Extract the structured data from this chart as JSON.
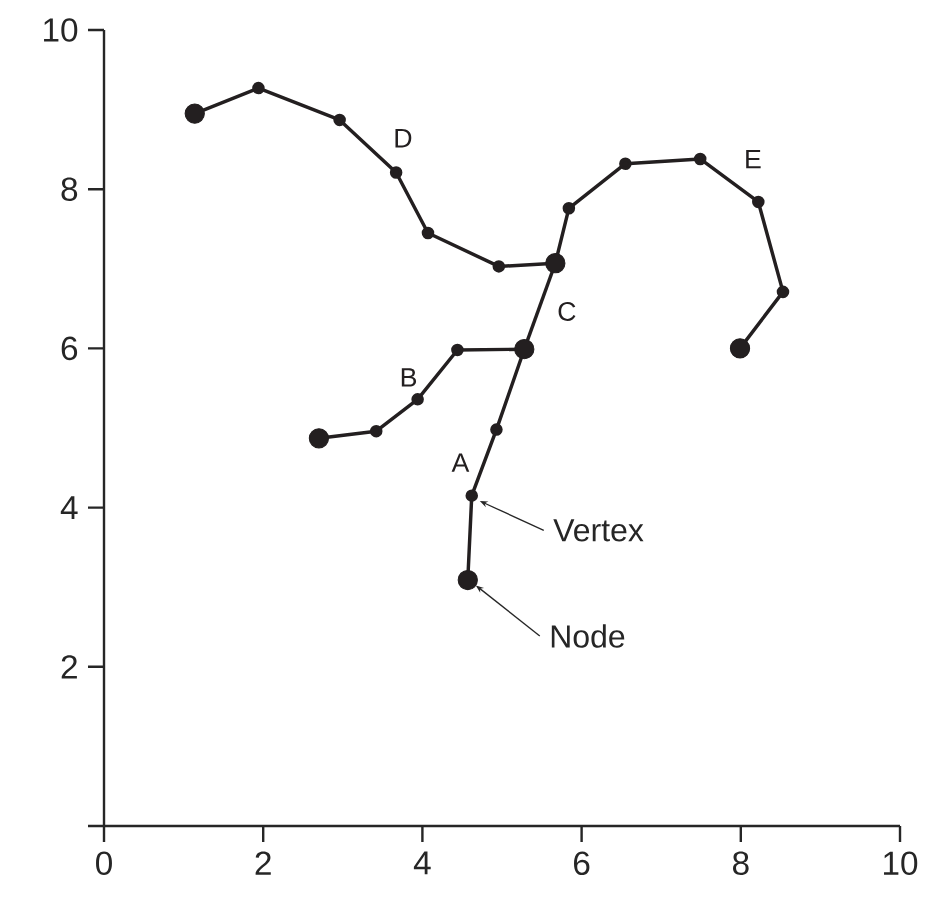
{
  "chart_data": {
    "type": "line",
    "xlim": [
      0,
      10
    ],
    "ylim": [
      0,
      10
    ],
    "xticks": [
      0,
      2,
      4,
      6,
      8,
      10
    ],
    "yticks": [
      {
        "value": 0,
        "label": null
      },
      2,
      4,
      6,
      8,
      10
    ],
    "marker": "circle",
    "series": [
      {
        "name": "A",
        "color": "#231f20",
        "x": [
          5.28,
          4.93,
          4.62,
          4.57
        ],
        "values": [
          5.99,
          4.98,
          4.15,
          3.09
        ]
      },
      {
        "name": "B",
        "color": "#231f20",
        "x": [
          5.28,
          4.44,
          3.94,
          3.42,
          2.7
        ],
        "values": [
          5.99,
          5.98,
          5.36,
          4.96,
          4.87
        ]
      },
      {
        "name": "C",
        "color": "#231f20",
        "x": [
          5.28,
          5.67
        ],
        "values": [
          5.99,
          7.07
        ]
      },
      {
        "name": "D",
        "color": "#231f20",
        "x": [
          5.67,
          4.96,
          4.07,
          3.67,
          2.96,
          1.94,
          1.14
        ],
        "values": [
          7.07,
          7.03,
          7.45,
          8.21,
          8.87,
          9.27,
          8.95
        ]
      },
      {
        "name": "E",
        "color": "#231f20",
        "x": [
          5.67,
          5.84,
          6.55,
          7.49,
          8.22,
          8.53,
          7.99
        ],
        "values": [
          7.07,
          7.76,
          8.32,
          8.38,
          7.84,
          6.71,
          6.0
        ]
      },
      {
        "type": "scatter",
        "color": "#231f20",
        "x": [
          4.57,
          5.28,
          2.7,
          5.67,
          1.14,
          7.99
        ],
        "values": [
          3.09,
          5.99,
          4.87,
          7.07,
          8.95,
          6.0
        ]
      }
    ],
    "annotations": [
      {
        "text": "Vertex",
        "x": 4.62,
        "y": 4.15
      },
      {
        "text": "Node",
        "x": 4.57,
        "y": 3.09
      }
    ]
  }
}
